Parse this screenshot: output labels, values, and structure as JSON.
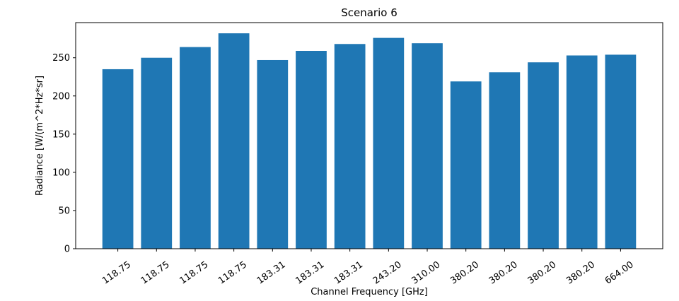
{
  "chart_data": {
    "type": "bar",
    "title": "Scenario 6",
    "xlabel": "Channel Frequency [GHz]",
    "ylabel": "Radiance [W/(m^2*Hz*sr]",
    "categories": [
      "118.75",
      "118.75",
      "118.75",
      "118.75",
      "183.31",
      "183.31",
      "183.31",
      "243.20",
      "310.00",
      "380.20",
      "380.20",
      "380.20",
      "380.20",
      "664.00"
    ],
    "values": [
      235,
      250,
      264,
      282,
      247,
      259,
      268,
      276,
      269,
      219,
      231,
      244,
      253,
      254
    ],
    "ylim": [
      0,
      296
    ],
    "yticks": [
      0,
      50,
      100,
      150,
      200,
      250
    ],
    "grid": false,
    "bar_color": "#1f77b4"
  }
}
